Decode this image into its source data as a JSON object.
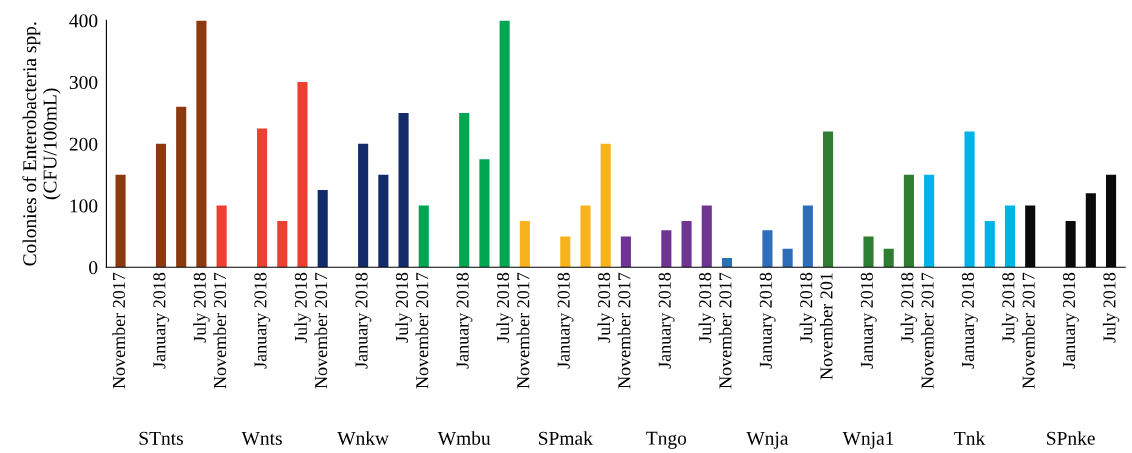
{
  "chart_data": {
    "type": "bar",
    "ylabel": "Colonies of Enterobacteria spp.\n(CFU/100mL)",
    "categories": [
      "November 2017",
      null,
      "January 2018",
      null,
      "July 2018",
      "November 2017",
      null,
      "January 2018",
      null,
      "July 2018",
      "November 2017",
      null,
      "January 2018",
      null,
      "July 2018",
      "November 2017",
      null,
      "January 2018",
      null,
      "July 2018",
      "November 2017",
      null,
      "January 2018",
      null,
      "July 2018",
      "November 2017",
      null,
      "January 2018",
      null,
      "July 2018",
      "November 2017",
      null,
      "January 2018",
      null,
      "July 2018",
      "November 201",
      null,
      "January 2018",
      null,
      "July 2018",
      "November 2017",
      null,
      "January 2018",
      null,
      "July 2018",
      "November 2017",
      null,
      "January 2018",
      null,
      "July 2018"
    ],
    "values": [
      150,
      null,
      200,
      260,
      400,
      100,
      null,
      225,
      75,
      300,
      125,
      null,
      200,
      150,
      250,
      100,
      null,
      250,
      175,
      400,
      75,
      null,
      50,
      100,
      200,
      50,
      null,
      60,
      75,
      100,
      15,
      null,
      60,
      30,
      100,
      220,
      null,
      50,
      30,
      150,
      150,
      null,
      220,
      75,
      100,
      100,
      null,
      75,
      120,
      150
    ],
    "colors": [
      "#8b3a0f",
      "#8b3a0f",
      "#8b3a0f",
      "#8b3a0f",
      "#8b3a0f",
      "#ee4030",
      "#ee4030",
      "#ee4030",
      "#ee4030",
      "#ee4030",
      "#132a6b",
      "#132a6b",
      "#132a6b",
      "#132a6b",
      "#132a6b",
      "#00a651",
      "#00a651",
      "#00a651",
      "#00a651",
      "#00a651",
      "#f7b21c",
      "#f7b21c",
      "#f7b21c",
      "#f7b21c",
      "#f7b21c",
      "#6f3494",
      "#6f3494",
      "#6f3494",
      "#6f3494",
      "#6f3494",
      "#2e6db8",
      "#2e6db8",
      "#2e6db8",
      "#2e6db8",
      "#2e6db8",
      "#2e7d32",
      "#2e7d32",
      "#2e7d32",
      "#2e7d32",
      "#2e7d32",
      "#00b3e6",
      "#00b3e6",
      "#00b3e6",
      "#00b3e6",
      "#00b3e6",
      "#0a0a0a",
      "#0a0a0a",
      "#0a0a0a",
      "#0a0a0a",
      "#0a0a0a"
    ],
    "ylim": [
      0,
      400
    ],
    "yticks": [
      0,
      100,
      200,
      300,
      400
    ],
    "grid": false,
    "legend": false,
    "annotations": [
      "STnts",
      "Wnts",
      "Wnkw",
      "Wmbu",
      "SPmak",
      "Tngo",
      "Wnja",
      "Wnja1",
      "Tnk",
      "SPnke"
    ]
  }
}
